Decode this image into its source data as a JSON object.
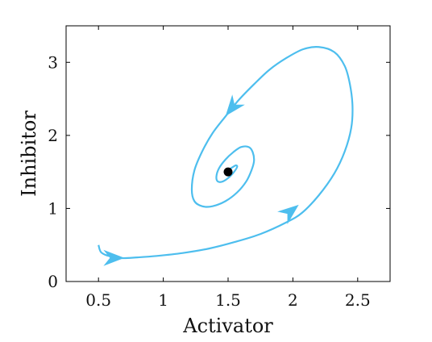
{
  "chart_data": {
    "type": "line",
    "title": "",
    "xlabel": "Activator",
    "ylabel": "Inhibitor",
    "xlim": [
      0.25,
      2.75
    ],
    "ylim": [
      0,
      3.5
    ],
    "xticks": [
      0.5,
      1,
      1.5,
      2,
      2.5
    ],
    "xtick_labels": [
      "0.5",
      "1",
      "1.5",
      "2",
      "2.5"
    ],
    "yticks": [
      0,
      1,
      2,
      3
    ],
    "ytick_labels": [
      "0",
      "1",
      "2",
      "3"
    ],
    "grid": false,
    "legend": "none",
    "series": [
      {
        "color": "#4dbeee",
        "x": [
          0.5,
          0.52,
          0.58,
          0.68,
          0.8,
          0.95,
          1.15,
          1.35,
          1.55,
          1.75,
          1.95,
          2.07,
          2.2,
          2.32,
          2.4,
          2.45,
          2.46,
          2.44,
          2.4,
          2.32,
          2.2,
          2.08,
          1.95,
          1.82,
          1.7,
          1.58,
          1.48,
          1.38,
          1.3,
          1.24,
          1.22,
          1.24,
          1.3,
          1.38,
          1.48,
          1.57,
          1.64,
          1.68,
          1.7,
          1.69,
          1.66,
          1.6,
          1.54,
          1.48,
          1.43,
          1.41,
          1.42,
          1.46,
          1.51,
          1.55,
          1.57,
          1.56,
          1.53,
          1.5
        ],
        "y": [
          0.5,
          0.4,
          0.35,
          0.32,
          0.33,
          0.35,
          0.39,
          0.45,
          0.54,
          0.65,
          0.81,
          0.94,
          1.18,
          1.48,
          1.78,
          2.1,
          2.4,
          2.7,
          2.95,
          3.14,
          3.21,
          3.18,
          3.06,
          2.9,
          2.7,
          2.48,
          2.26,
          2.03,
          1.78,
          1.52,
          1.26,
          1.1,
          1.03,
          1.03,
          1.1,
          1.22,
          1.37,
          1.52,
          1.65,
          1.77,
          1.84,
          1.84,
          1.77,
          1.67,
          1.55,
          1.44,
          1.37,
          1.37,
          1.43,
          1.51,
          1.57,
          1.59,
          1.56,
          1.52
        ]
      }
    ],
    "arrows": [
      {
        "x": 0.7,
        "y": 0.323,
        "dx": 1,
        "dy": 0
      },
      {
        "x": 2.045,
        "y": 1.05,
        "dx": 1,
        "dy": 0.8
      },
      {
        "x": 1.48,
        "y": 2.265,
        "dx": -0.8,
        "dy": -1
      }
    ],
    "points": [
      {
        "x": 1.5,
        "y": 1.5,
        "color": "#000000"
      }
    ]
  }
}
